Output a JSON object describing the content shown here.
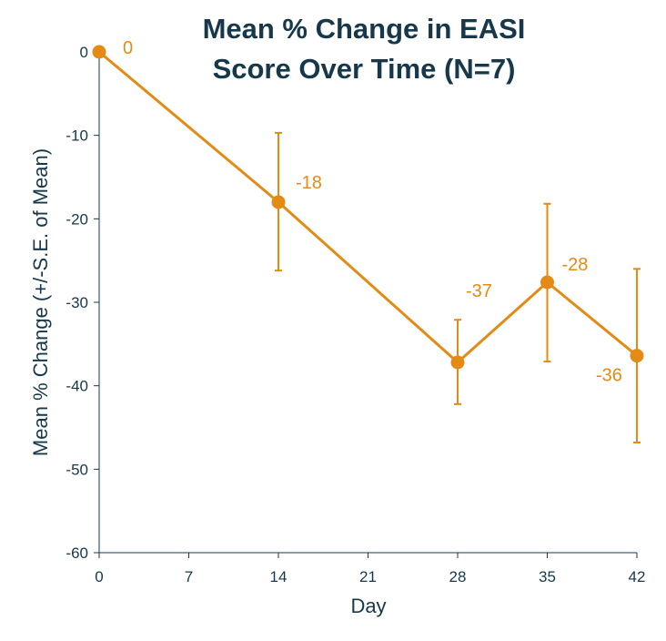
{
  "chart_data": {
    "type": "line",
    "title_lines": [
      "Mean % Change in EASI",
      "Score Over Time (N=7)"
    ],
    "xlabel": "Day",
    "ylabel": "Mean % Change (+/-S.E. of Mean)",
    "xlim": [
      0,
      42
    ],
    "ylim": [
      -60,
      0
    ],
    "x_ticks": [
      0,
      7,
      14,
      21,
      28,
      35,
      42
    ],
    "y_ticks": [
      0,
      -10,
      -20,
      -30,
      -40,
      -50,
      -60
    ],
    "grid": false,
    "series": [
      {
        "x": [
          0,
          14,
          28,
          35,
          42
        ],
        "y": [
          0,
          -18,
          -37.2,
          -27.6,
          -36.4
        ],
        "error_low": [
          0,
          -26.2,
          -42.2,
          -37.1,
          -46.8
        ],
        "error_high": [
          0,
          -9.7,
          -32.1,
          -18.2,
          -26.0
        ],
        "data_labels": [
          "0",
          "-18",
          "-37",
          "-28",
          "-36"
        ]
      }
    ],
    "colors": {
      "series": "#e38b14",
      "axis": "#17384a",
      "text": "#17384a"
    }
  }
}
